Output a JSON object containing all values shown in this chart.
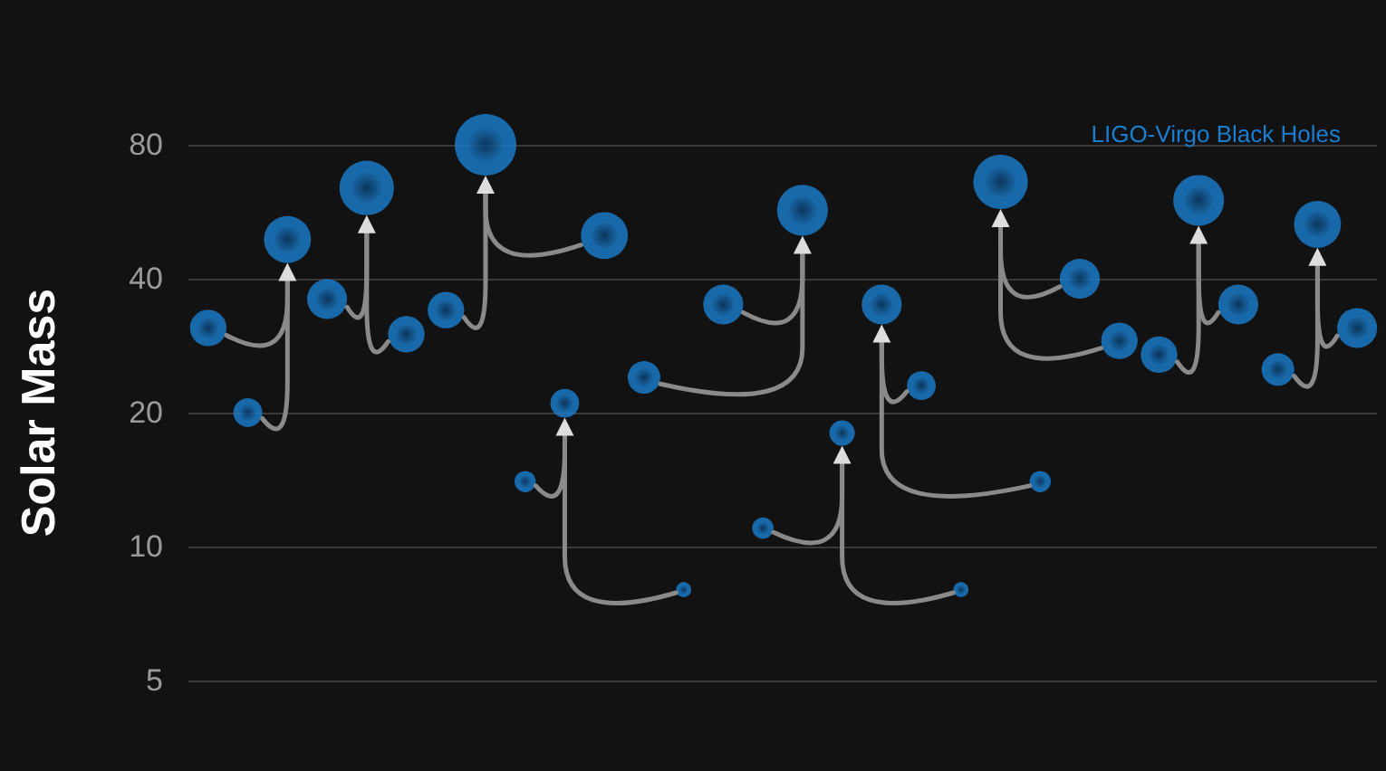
{
  "chart_data": {
    "type": "bubble",
    "ylabel": "Solar Mass",
    "log": "y",
    "ylim": [
      5,
      80
    ],
    "yticks": [
      5,
      10,
      20,
      40,
      80
    ],
    "grid": "y",
    "legend": "top right",
    "tick_labels": "y",
    "categories": [
      null,
      null,
      null,
      null,
      null,
      null,
      null,
      null,
      null,
      null,
      null,
      null,
      null,
      null,
      null,
      null,
      null,
      null,
      null,
      null,
      null,
      null,
      null,
      null,
      null,
      null,
      null,
      null,
      null,
      null
    ],
    "series": [
      {
        "name": "LIGO-Virgo Black Holes",
        "color": "#1a7fd0",
        "values": [
          31,
          20,
          49,
          36,
          64,
          30,
          34,
          80,
          14,
          21,
          50,
          24,
          8,
          35,
          11,
          57,
          18,
          35,
          23,
          8,
          66,
          14,
          40,
          29,
          27,
          60,
          35,
          25,
          53,
          31
        ],
        "sizes": [
          0.35,
          0.22,
          0.58,
          0.42,
          0.78,
          0.35,
          0.35,
          1,
          0.12,
          0.22,
          0.58,
          0.28,
          0.06,
          0.42,
          0.12,
          0.68,
          0.17,
          0.42,
          0.22,
          0.06,
          0.78,
          0.12,
          0.42,
          0.35,
          0.35,
          0.68,
          0.42,
          0.28,
          0.58,
          0.42
        ]
      }
    ]
  }
}
